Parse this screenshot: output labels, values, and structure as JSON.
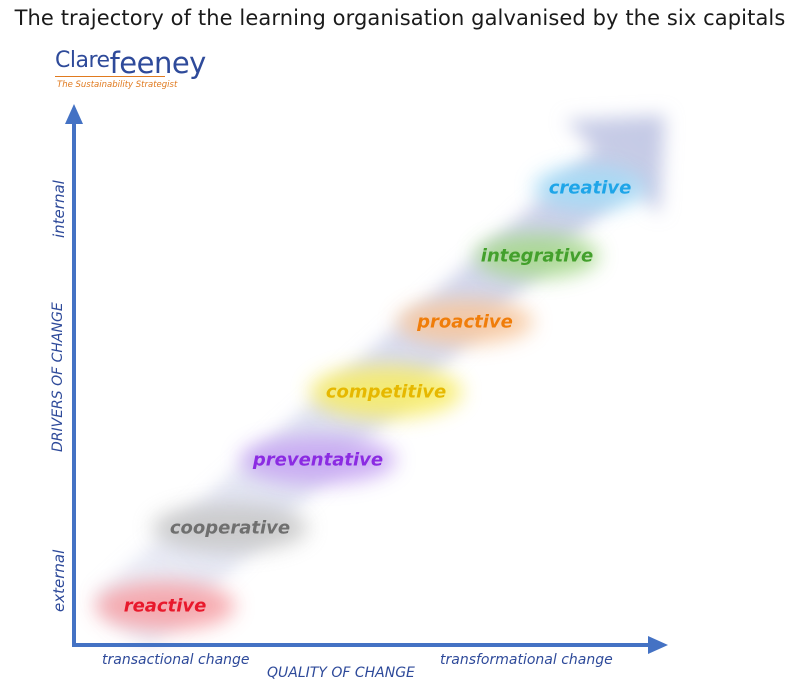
{
  "title": "The trajectory of the learning organisation galvanised by the six capitals",
  "logo": {
    "name_part1": "Clare",
    "name_part2": "feeney",
    "tagline": "The Sustainability Strategist"
  },
  "axes": {
    "y_title": "DRIVERS OF CHANGE",
    "y_top": "internal",
    "y_bottom": "external",
    "x_title": "QUALITY OF CHANGE",
    "x_left": "transactional change",
    "x_right": "transformational change",
    "axis_color": "#4472c4"
  },
  "stages": [
    {
      "label": "reactive",
      "color": "#e8192c",
      "glow": "#f6a3a8"
    },
    {
      "label": "cooperative",
      "color": "#6f6f6f",
      "glow": "#c9c9c9"
    },
    {
      "label": "preventative",
      "color": "#8b2be2",
      "glow": "#c8a8f3"
    },
    {
      "label": "competitive",
      "color": "#e6b800",
      "glow": "#f7ec6a"
    },
    {
      "label": "proactive",
      "color": "#f07d0a",
      "glow": "#f7c79f"
    },
    {
      "label": "integrative",
      "color": "#43a02c",
      "glow": "#a9d98f"
    },
    {
      "label": "creative",
      "color": "#1ea5e8",
      "glow": "#a6dbf6"
    }
  ]
}
